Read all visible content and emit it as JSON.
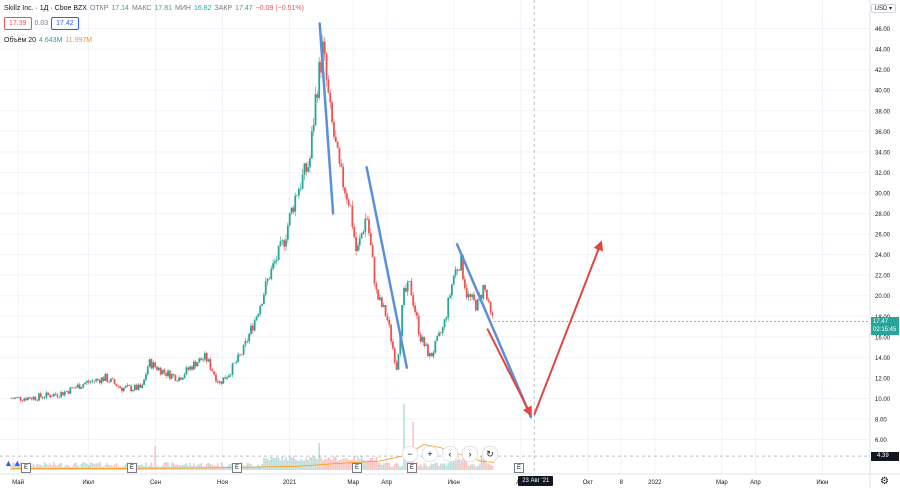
{
  "legend": {
    "symbol": "Skillz Inc. · 1Д · Cboe BZX",
    "open_label": "ОТКР",
    "open_value": "17.14",
    "high_label": "МАКС",
    "high_value": "17.81",
    "low_label": "МИН",
    "low_value": "16.82",
    "close_label": "ЗАКР",
    "close_value": "17.47",
    "change_value": "−0.09 (−0.51%)",
    "bid": "17.39",
    "spread": "0.03",
    "ask": "17.42",
    "volume_label": "Объём 20",
    "volume_value": "4.643M",
    "volume_ma": "11.997M"
  },
  "axis": {
    "currency": "USD ▾",
    "price_tag": "17.47",
    "price_tag_time": "02:15:45",
    "crosshair_price": "4.39",
    "crosshair_date": "23 Авг '21"
  },
  "nav": {
    "minus": "−",
    "plus": "+",
    "left": "‹",
    "right": "›",
    "reset": "↻"
  },
  "earnings_badge": "E",
  "icons": {
    "settings": "gear-icon",
    "logo": "tradingview-logo-icon"
  },
  "colors": {
    "up": "#26a69a",
    "down": "#ef5350",
    "trend_blue": "#5b8fd8",
    "trend_red": "#e0473e",
    "vol_ma": "#ff9800"
  },
  "chart_data": {
    "type": "candlestick",
    "price_ticks": [
      6,
      8,
      10,
      12,
      14,
      16,
      18,
      20,
      22,
      24,
      26,
      28,
      30,
      32,
      34,
      36,
      38,
      40,
      42,
      44,
      46
    ],
    "price_tick_labels": [
      "6.00",
      "8.00",
      "10.00",
      "12.00",
      "14.00",
      "16.00",
      "18.00",
      "20.00",
      "22.00",
      "24.00",
      "26.00",
      "28.00",
      "30.00",
      "32.00",
      "34.00",
      "36.00",
      "38.00",
      "40.00",
      "42.00",
      "44.00",
      "46.00"
    ],
    "ylim": [
      4.4,
      48.0
    ],
    "time_labels": [
      "Май",
      "Июл",
      "Сен",
      "Ноя",
      "2021",
      "Мар",
      "Апр",
      "Июн",
      "Авг",
      "Окт",
      "8",
      "2022",
      "Мар",
      "Апр",
      "Июн"
    ],
    "time_positions": [
      0.2,
      2.3,
      4.3,
      6.3,
      8.3,
      10.2,
      11.2,
      13.2,
      15.2,
      17.2,
      18.2,
      19.2,
      21.2,
      22.2,
      24.2
    ],
    "xlim": [
      -0.1,
      25.5
    ],
    "price_path": [
      [
        0.0,
        10.0
      ],
      [
        0.7,
        10.1
      ],
      [
        1.5,
        10.5
      ],
      [
        2.2,
        11.5
      ],
      [
        2.8,
        12.0
      ],
      [
        3.3,
        11.0
      ],
      [
        3.9,
        11.0
      ],
      [
        4.1,
        13.5
      ],
      [
        4.6,
        12.5
      ],
      [
        5.0,
        12.0
      ],
      [
        5.5,
        13.5
      ],
      [
        5.8,
        14.0
      ],
      [
        6.2,
        11.5
      ],
      [
        6.5,
        12.5
      ],
      [
        6.9,
        14.5
      ],
      [
        7.3,
        18.0
      ],
      [
        7.7,
        22.0
      ],
      [
        8.1,
        25.0
      ],
      [
        8.5,
        30.0
      ],
      [
        8.9,
        33.0
      ],
      [
        9.1,
        40.0
      ],
      [
        9.3,
        44.0
      ],
      [
        9.5,
        38.0
      ],
      [
        9.8,
        32.0
      ],
      [
        10.1,
        29.0
      ],
      [
        10.3,
        24.0
      ],
      [
        10.6,
        28.0
      ],
      [
        10.9,
        20.0
      ],
      [
        11.2,
        18.0
      ],
      [
        11.5,
        13.0
      ],
      [
        11.7,
        20.0
      ],
      [
        11.9,
        21.0
      ],
      [
        12.2,
        16.0
      ],
      [
        12.5,
        14.0
      ],
      [
        12.9,
        17.0
      ],
      [
        13.2,
        22.0
      ],
      [
        13.4,
        23.5
      ],
      [
        13.6,
        20.0
      ],
      [
        13.9,
        19.0
      ],
      [
        14.1,
        21.0
      ],
      [
        14.3,
        18.0
      ],
      [
        14.4,
        17.47
      ]
    ],
    "volume_ma_path": [
      [
        0.0,
        0.05
      ],
      [
        3.0,
        0.05
      ],
      [
        6.0,
        0.07
      ],
      [
        8.5,
        0.12
      ],
      [
        9.5,
        0.2
      ],
      [
        11.0,
        0.3
      ],
      [
        11.8,
        0.5
      ],
      [
        12.3,
        0.85
      ],
      [
        12.8,
        0.75
      ],
      [
        13.3,
        0.55
      ],
      [
        14.0,
        0.3
      ],
      [
        14.4,
        0.25
      ]
    ],
    "volume_spikes": [
      [
        4.3,
        0.8
      ],
      [
        9.2,
        0.9
      ],
      [
        11.7,
        2.2
      ],
      [
        12.0,
        1.6
      ],
      [
        13.5,
        0.4
      ]
    ],
    "annotations": {
      "blue_lines": [
        {
          "from": [
            9.2,
            46.5
          ],
          "to": [
            9.6,
            28.0
          ]
        },
        {
          "from": [
            10.6,
            32.5
          ],
          "to": [
            11.8,
            13.0
          ]
        },
        {
          "from": [
            13.3,
            25.0
          ],
          "to": [
            15.5,
            8.2
          ]
        }
      ],
      "red_arrows": [
        {
          "from": [
            14.2,
            16.8
          ],
          "to": [
            15.5,
            8.4
          ]
        },
        {
          "from": [
            15.6,
            8.4
          ],
          "to": [
            17.6,
            25.2
          ]
        }
      ]
    },
    "current_price": 17.47,
    "crosshair_x": 15.6,
    "crosshair_price": 4.39,
    "grid": true
  }
}
